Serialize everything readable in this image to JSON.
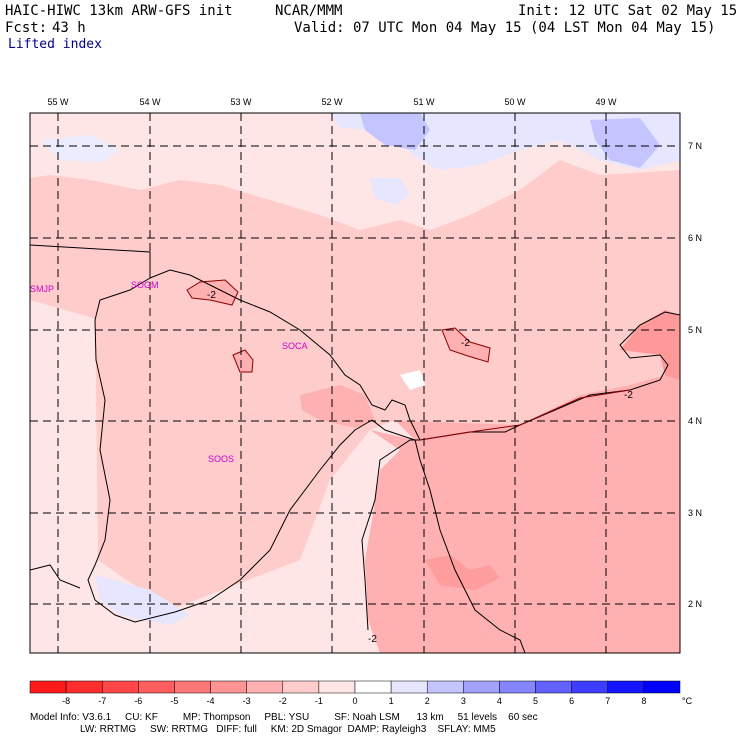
{
  "header": {
    "model": "HAIC-HIWC 13km ARW-GFS init",
    "center": "NCAR/MMM",
    "init": "Init: 12 UTC Sat 02 May 15",
    "fcst_label": "Fcst:",
    "fcst_value": "43 h",
    "valid": "Valid: 07 UTC Mon 04 May 15 (04 LST Mon 04 May 15)",
    "field": "Lifted index"
  },
  "map": {
    "lon_labels": [
      "55 W",
      "54 W",
      "53 W",
      "52 W",
      "51 W",
      "50 W",
      "49 W"
    ],
    "lat_labels": [
      "7 N",
      "6 N",
      "5 N",
      "4 N",
      "3 N",
      "2 N"
    ],
    "stations": [
      "SMJP",
      "SOGM",
      "SOCA",
      "SOOS"
    ],
    "contour_labels": [
      "-2",
      "-2",
      "-2",
      "-2"
    ]
  },
  "colorbar": {
    "ticks": [
      "-8",
      "-7",
      "-6",
      "-5",
      "-4",
      "-3",
      "-2",
      "-1",
      "0",
      "1",
      "2",
      "3",
      "4",
      "5",
      "6",
      "7",
      "8"
    ],
    "unit": "°C",
    "colors": [
      "#ff1a1a",
      "#ff2e2e",
      "#ff4747",
      "#ff5e5e",
      "#ff7878",
      "#ff9494",
      "#ffb0b0",
      "#ffcccc",
      "#ffe6e6",
      "#ffffff",
      "#e6e6ff",
      "#c4c4ff",
      "#a3a3ff",
      "#8585ff",
      "#6161ff",
      "#3d3dff",
      "#1414ff",
      "#0000ff"
    ]
  },
  "footer": {
    "line1": "Model Info: V3.6.1     CU: KF         MP: Thompson     PBL: YSU         SF: Noah LSM      13 km     51 levels    60 sec",
    "line2": "                  LW: RRTMG     SW: RRTMG   DIFF: full     KM: 2D Smagor  DAMP: Rayleigh3    SFLAY: MM5"
  }
}
